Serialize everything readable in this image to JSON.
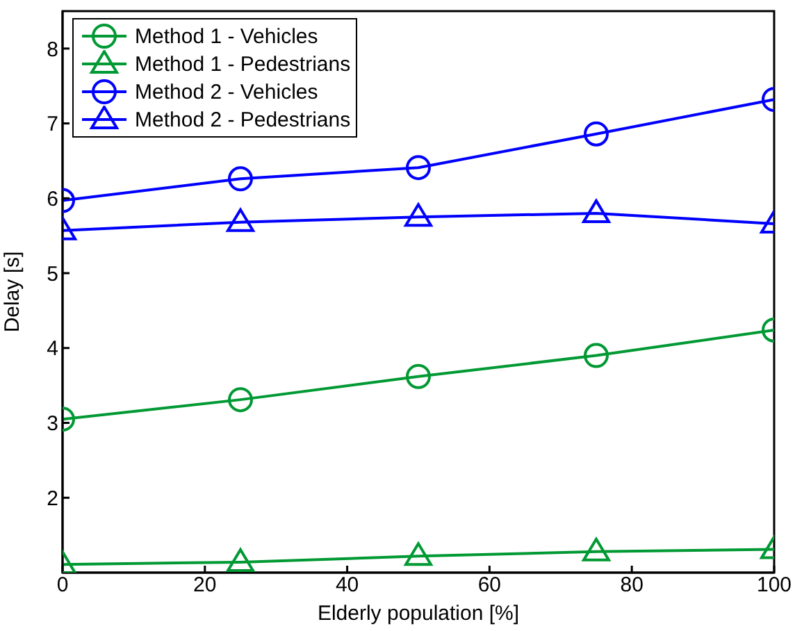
{
  "chart_data": {
    "type": "line",
    "xlabel": "Elderly population [%]",
    "ylabel": "Delay [s]",
    "x": [
      0,
      25,
      50,
      75,
      100
    ],
    "series": [
      {
        "name": "Method 1 - Vehicles",
        "color": "#009933",
        "marker": "circle",
        "values": [
          3.05,
          3.31,
          3.62,
          3.9,
          4.24
        ]
      },
      {
        "name": "Method 1 - Pedestrians",
        "color": "#009933",
        "marker": "triangle",
        "values": [
          1.11,
          1.14,
          1.22,
          1.28,
          1.31
        ]
      },
      {
        "name": "Method 2 - Vehicles",
        "color": "#0000ff",
        "marker": "circle",
        "values": [
          5.97,
          6.26,
          6.41,
          6.86,
          7.32
        ]
      },
      {
        "name": "Method 2 - Pedestrians",
        "color": "#0000ff",
        "marker": "triangle",
        "values": [
          5.57,
          5.68,
          5.75,
          5.8,
          5.66
        ]
      }
    ],
    "xlim": [
      0,
      100
    ],
    "xticks": [
      0,
      20,
      40,
      60,
      80,
      100
    ],
    "ylim": [
      1,
      8.5
    ],
    "yticks": [
      2,
      3,
      4,
      5,
      6,
      7,
      8
    ],
    "grid": false,
    "legend": "top left",
    "line_style": "solid"
  }
}
